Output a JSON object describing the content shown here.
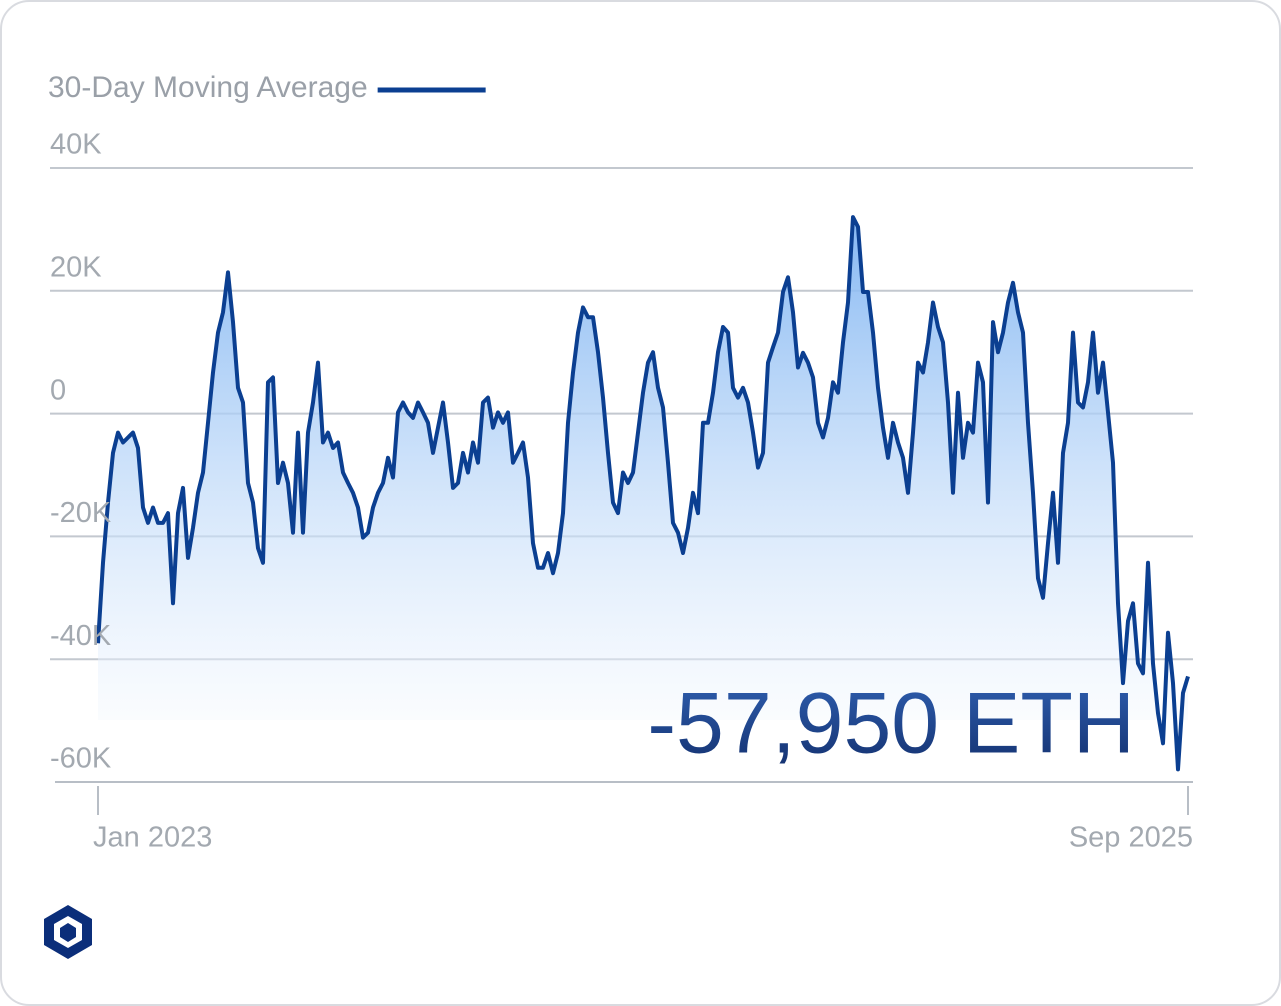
{
  "chart_data": {
    "type": "line",
    "annotation": "-57,950 ETH",
    "ylim": [
      -60000,
      40000
    ],
    "yticks": [
      {
        "value": 40000,
        "label": "40K"
      },
      {
        "value": 20000,
        "label": "20K"
      },
      0,
      {
        "value": -20000,
        "label": "-20K"
      },
      {
        "value": -40000,
        "label": "-40K"
      },
      {
        "value": -60000,
        "label": "-60K"
      }
    ],
    "grid": true,
    "legend": "top-left",
    "categories": [
      "Jan 2023",
      null,
      null,
      null,
      null,
      null,
      null,
      null,
      null,
      null,
      null,
      null,
      null,
      null,
      null,
      null,
      null,
      null,
      null,
      null,
      null,
      null,
      null,
      null,
      null,
      null,
      null,
      null,
      null,
      null,
      null,
      null,
      null,
      null,
      null,
      null,
      null,
      null,
      null,
      null,
      null,
      null,
      null,
      null,
      null,
      null,
      null,
      null,
      null,
      null,
      null,
      null,
      null,
      null,
      null,
      null,
      null,
      null,
      null,
      null,
      null,
      null,
      null,
      null,
      null,
      null,
      null,
      null,
      null,
      null,
      null,
      null,
      null,
      null,
      null,
      null,
      null,
      null,
      null,
      null,
      null,
      null,
      null,
      null,
      null,
      null,
      null,
      null,
      null,
      null,
      null,
      null,
      null,
      null,
      null,
      null,
      null,
      null,
      null,
      null,
      null,
      null,
      null,
      null,
      null,
      null,
      null,
      null,
      null,
      null,
      null,
      null,
      null,
      null,
      null,
      null,
      null,
      null,
      null,
      null,
      null,
      null,
      null,
      null,
      null,
      null,
      null,
      null,
      null,
      null,
      null,
      null,
      null,
      null,
      null,
      null,
      null,
      null,
      null,
      null,
      null,
      null,
      null,
      null,
      null,
      null,
      null,
      null,
      null,
      null,
      null,
      null,
      null,
      null,
      null,
      null,
      null,
      null,
      null,
      null,
      null,
      null,
      null,
      null,
      null,
      null,
      null,
      null,
      null,
      null,
      null,
      null,
      null,
      null,
      null,
      null,
      null,
      null,
      null,
      null,
      null,
      null,
      null,
      null,
      null,
      null,
      null,
      null,
      null,
      null,
      null,
      null,
      null,
      null,
      null,
      null,
      null,
      null,
      null,
      null,
      null,
      null,
      null,
      null,
      null,
      null,
      null,
      null,
      null,
      null,
      null,
      null,
      null,
      null,
      null,
      null,
      null,
      null,
      "Sep 2025"
    ],
    "series": [
      {
        "name": "30-Day Moving Average",
        "color": "#0b3f91",
        "values": [
          -37400,
          -24300,
          -14500,
          -6400,
          -3100,
          -4700,
          -3900,
          -3100,
          -5600,
          -15300,
          -17800,
          -15300,
          -17800,
          -17800,
          -16200,
          -30900,
          -16200,
          -12100,
          -23500,
          -18600,
          -12900,
          -9600,
          -1500,
          6700,
          13200,
          16500,
          23000,
          14900,
          4200,
          1800,
          -11300,
          -14500,
          -21900,
          -24300,
          5100,
          5900,
          -11300,
          -8000,
          -11300,
          -19400,
          -3100,
          -19400,
          -3100,
          1800,
          8300,
          -4700,
          -3100,
          -5600,
          -4700,
          -9600,
          -11300,
          -12900,
          -15300,
          -20200,
          -19400,
          -15300,
          -12900,
          -11300,
          -7200,
          -10400,
          200,
          1800,
          200,
          -700,
          1800,
          200,
          -1500,
          -6400,
          -2300,
          1800,
          -4700,
          -12100,
          -11300,
          -6400,
          -9600,
          -4700,
          -8000,
          1800,
          2600,
          -2300,
          200,
          -1500,
          200,
          -8000,
          -6400,
          -4700,
          -10400,
          -21100,
          -25100,
          -25100,
          -22700,
          -26000,
          -22700,
          -16200,
          -1500,
          6700,
          13200,
          17300,
          15700,
          15700,
          10000,
          2600,
          -6400,
          -14500,
          -16200,
          -9600,
          -11300,
          -9600,
          -3100,
          3400,
          8300,
          10000,
          4200,
          1000,
          -8000,
          -17800,
          -19400,
          -22700,
          -18600,
          -12900,
          -16200,
          -1500,
          -1500,
          3400,
          10000,
          14100,
          13200,
          4200,
          2600,
          4200,
          1800,
          -3100,
          -8800,
          -6400,
          8300,
          10800,
          13200,
          19800,
          22200,
          16500,
          7500,
          9900,
          8300,
          5900,
          -1500,
          -3900,
          -700,
          5100,
          3400,
          11600,
          18100,
          32000,
          30400,
          19800,
          19800,
          13200,
          4200,
          -2300,
          -7200,
          -1500,
          -4700,
          -7200,
          -12900,
          -3100,
          8300,
          6700,
          11600,
          18100,
          14100,
          11600,
          1800,
          -12900,
          3400,
          -7200,
          -1500,
          -3100,
          8300,
          5100,
          -14500,
          14900,
          10000,
          13200,
          18100,
          21300,
          16500,
          13200,
          -1500,
          -12900,
          -26800,
          -30000,
          -21100,
          -12900,
          -24300,
          -6400,
          -1500,
          13200,
          1800,
          1000,
          5100,
          13200,
          3400,
          8300,
          200,
          -8000,
          -30900,
          -43900,
          -33800,
          -30900,
          -40700,
          -42300,
          -24300,
          -40700,
          -48800,
          -53700,
          -35700,
          -43900,
          -57950,
          -45500,
          -42800
        ]
      }
    ]
  }
}
